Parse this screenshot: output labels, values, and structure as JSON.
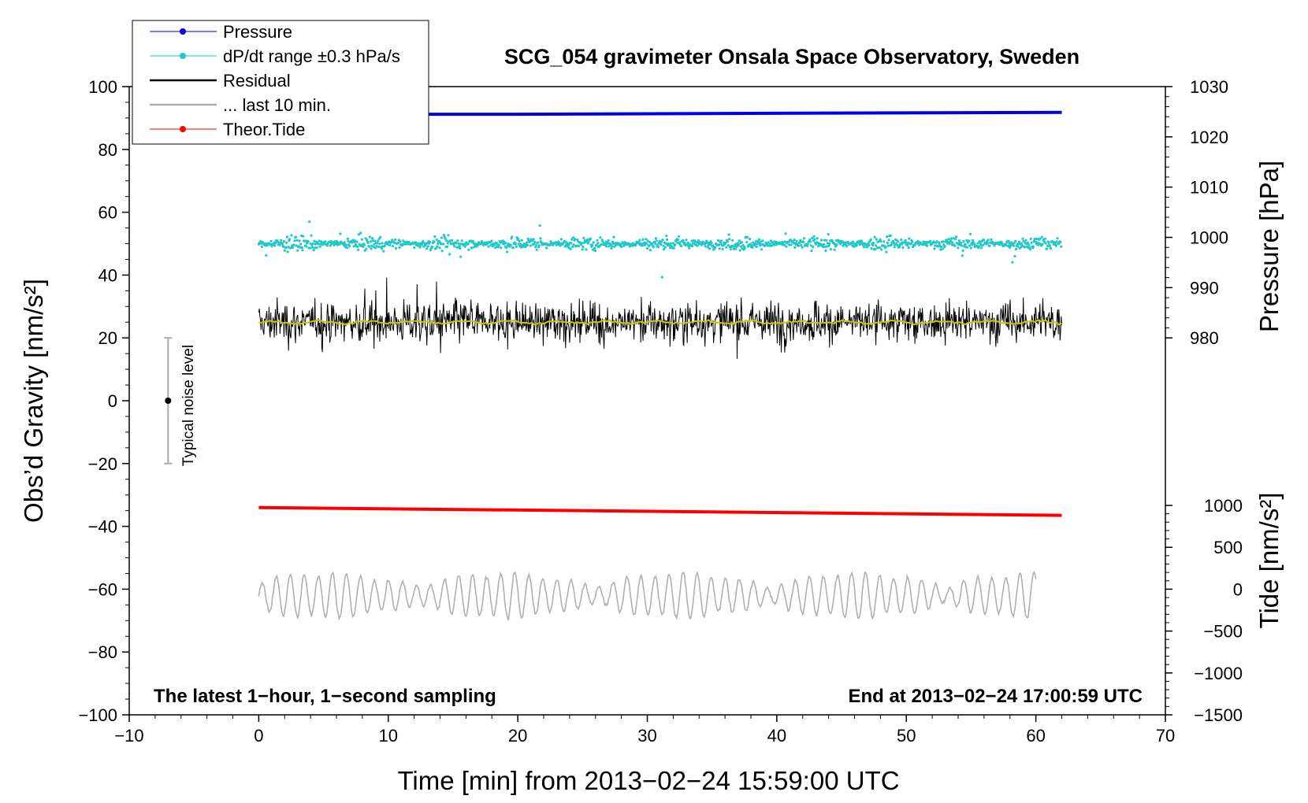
{
  "chart_data": {
    "type": "line",
    "title": "SCG_054 gravimeter Onsala Space Observatory, Sweden",
    "xlabel": "Time [min] from 2013−02−24 15:59:00 UTC",
    "ylabel_left": "Obs’d Gravity [nm/s²]",
    "ylabel_right_pressure": "Pressure [hPa]",
    "ylabel_right_tide": "Tide [nm/s²]",
    "annotation_left": "The latest 1−hour, 1−second sampling",
    "annotation_right": "End at 2013−02−24 17:00:59 UTC",
    "noise_label": "Typical noise level",
    "xlim": [
      -10,
      70
    ],
    "ylim_left": [
      -100,
      100
    ],
    "pressure_range": [
      980,
      1030
    ],
    "tide_range": [
      -1500,
      1000
    ],
    "x_ticks": [
      "−10",
      "0",
      "10",
      "20",
      "30",
      "40",
      "50",
      "60",
      "70"
    ],
    "y_ticks_left": [
      "−100",
      "−80",
      "−60",
      "−40",
      "−20",
      "0",
      "20",
      "40",
      "60",
      "80",
      "100"
    ],
    "pressure_ticks": [
      "980",
      "990",
      "1000",
      "1010",
      "1020",
      "1030"
    ],
    "tide_ticks": [
      "−1500",
      "−1000",
      "−500",
      "0",
      "500",
      "1000"
    ],
    "legend": [
      {
        "label": "Pressure",
        "color": "#0000e0"
      },
      {
        "label": "dP/dt range ±0.3 hPa/s",
        "color": "#20c8c8"
      },
      {
        "label": "Residual",
        "color": "#000000"
      },
      {
        "label": "... last 10 min.",
        "color": "#b0b0b0"
      },
      {
        "label": "Theor.Tide",
        "color": "#ff0000"
      }
    ],
    "noise_bar": {
      "x": -7,
      "center": 0,
      "low": -20,
      "high": 20
    },
    "series": [
      {
        "name": "Pressure",
        "color": "#0000e0",
        "x": [
          0,
          20,
          40,
          62
        ],
        "y": [
          91.2,
          91.2,
          91.5,
          91.8
        ]
      },
      {
        "name": "dP/dt",
        "color": "#20c8c8",
        "x_range": [
          0,
          62
        ],
        "center": 50,
        "spread": 3.5
      },
      {
        "name": "Residual",
        "color": "#000000",
        "x_range": [
          0,
          62
        ],
        "center": 25,
        "spread": 6
      },
      {
        "name": "Residual mean",
        "color": "#c8c800",
        "x_range": [
          0,
          62
        ],
        "center": 25
      },
      {
        "name": "Theor.Tide",
        "color": "#ff0000",
        "x": [
          0,
          62
        ],
        "y": [
          -34,
          -36.5
        ]
      },
      {
        "name": "... last 10 min.",
        "color": "#b0b0b0",
        "x_range": [
          0,
          60
        ],
        "center": -62
      }
    ]
  }
}
